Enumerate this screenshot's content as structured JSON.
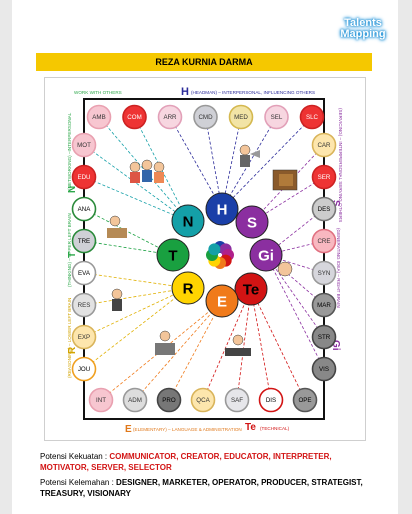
{
  "logo": {
    "line1": "Talents",
    "line2": "Mapping"
  },
  "header": {
    "name": "REZA KURNIA DARMA"
  },
  "diagram": {
    "headman_label": "(HEADMAN) – INTERPERSONAL, INFLUENCING OTHERS",
    "headman_letter": "H",
    "work_with_others": "WORK WITH OTHERS",
    "networking_label": "(NETWORKING) –INTERPERSONAL",
    "networking_letter": "N",
    "thinking_label": "(THINKING) – UPPER LEFT BRAIN",
    "thinking_letter": "T",
    "reasoning_label": "(REASONING) – LOWER LEFT BRAIN",
    "reasoning_letter": "R",
    "servicing_label": "(SERVICING) – INTERPERSONAL SERVING OTHERS",
    "servicing_letter": "S",
    "generating_label": "(GENERATING IDEA) – RIGHT BRAIN",
    "generating_letter": "Gi",
    "elementary_letter": "E",
    "elementary_label": "(ELEMENTARY) – LANGUAGE & ADMINISTRATION",
    "technical_letter": "Te",
    "technical_label": "(TECHNICAL)",
    "cluster": {
      "H": "H",
      "S": "S",
      "Gi": "Gi",
      "Te": "Te",
      "E": "E",
      "R": "R",
      "T": "T",
      "N": "N"
    },
    "top_circles": [
      "AMB",
      "COM",
      "ARR",
      "CMD",
      "MED",
      "SEL",
      "SLC"
    ],
    "left_circles": [
      "MOT",
      "EDU",
      "ANA",
      "TRE",
      "EVA",
      "RES",
      "EXP",
      "JOU"
    ],
    "right_circles": [
      "CAR",
      "SER",
      "DES",
      "CRE",
      "SYN",
      "MAR",
      "STR",
      "VIS"
    ],
    "bottom_circles": [
      "INT",
      "ADM",
      "PRO",
      "QCA",
      "SAF",
      "DIS",
      "OPE"
    ]
  },
  "strengths": {
    "label": "Potensi Kekuatan : ",
    "values": "COMMUNICATOR, CREATOR, EDUCATOR, INTERPRETER, MOTIVATOR, SERVER, SELECTOR"
  },
  "weaknesses": {
    "label": "Potensi Kelemahan : ",
    "values": "DESIGNER, MARKETER, OPERATOR, PRODUCER, STRATEGIST, TREASURY, VISIONARY"
  }
}
